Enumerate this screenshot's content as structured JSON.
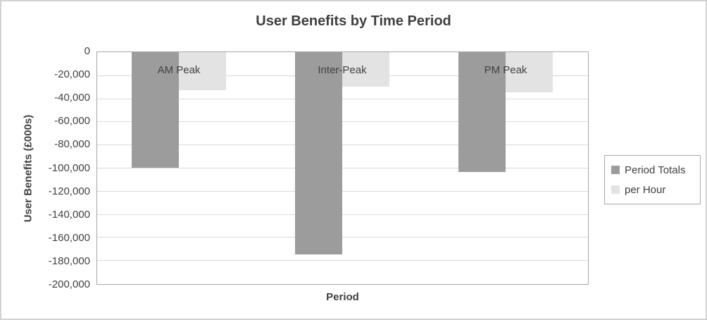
{
  "canvas": {
    "background": "#ffffff",
    "border_color": "#d3d3d3"
  },
  "chart_data": {
    "type": "bar",
    "title": "User Benefits by Time Period",
    "xlabel": "Period",
    "ylabel": "User Benefits (£000s)",
    "categories": [
      "AM Peak",
      "Inter-Peak",
      "PM Peak"
    ],
    "series": [
      {
        "name": "Period Totals",
        "color": "#9c9c9c",
        "values": [
          -100000,
          -175000,
          -103500
        ]
      },
      {
        "name": "per Hour",
        "color": "#e3e3e3",
        "values": [
          -33000,
          -30000,
          -34800
        ]
      }
    ],
    "ylim": [
      -200000,
      0
    ],
    "ytick_step": 20000,
    "yticks": [
      "0",
      "-20,000",
      "-40,000",
      "-60,000",
      "-80,000",
      "-100,000",
      "-120,000",
      "-140,000",
      "-160,000",
      "-180,000",
      "-200,000"
    ],
    "grid": true,
    "legend_position": "right",
    "colors": {
      "text": "#404040",
      "gridline": "#d9d9d9",
      "plot_border": "#a6a6a6",
      "legend_border": "#a6a6a6"
    }
  }
}
